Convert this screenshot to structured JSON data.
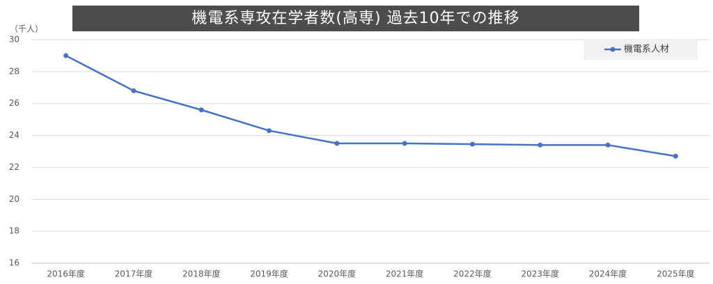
{
  "chart_data": {
    "type": "line",
    "title": "機電系専攻在学者数(高専) 過去10年での推移",
    "y_axis_label": "（千人）",
    "categories": [
      "2016年度",
      "2017年度",
      "2018年度",
      "2019年度",
      "2020年度",
      "2021年度",
      "2022年度",
      "2023年度",
      "2024年度",
      "2025年度"
    ],
    "series": [
      {
        "name": "機電系人材",
        "color": "#4472c4",
        "values": [
          29.0,
          26.8,
          25.6,
          24.3,
          23.5,
          23.5,
          23.45,
          23.4,
          23.4,
          22.7
        ]
      }
    ],
    "ylim": [
      16,
      30
    ],
    "yticks": [
      16,
      18,
      20,
      22,
      24,
      26,
      28,
      30
    ],
    "grid": true,
    "legend": "upper right"
  }
}
